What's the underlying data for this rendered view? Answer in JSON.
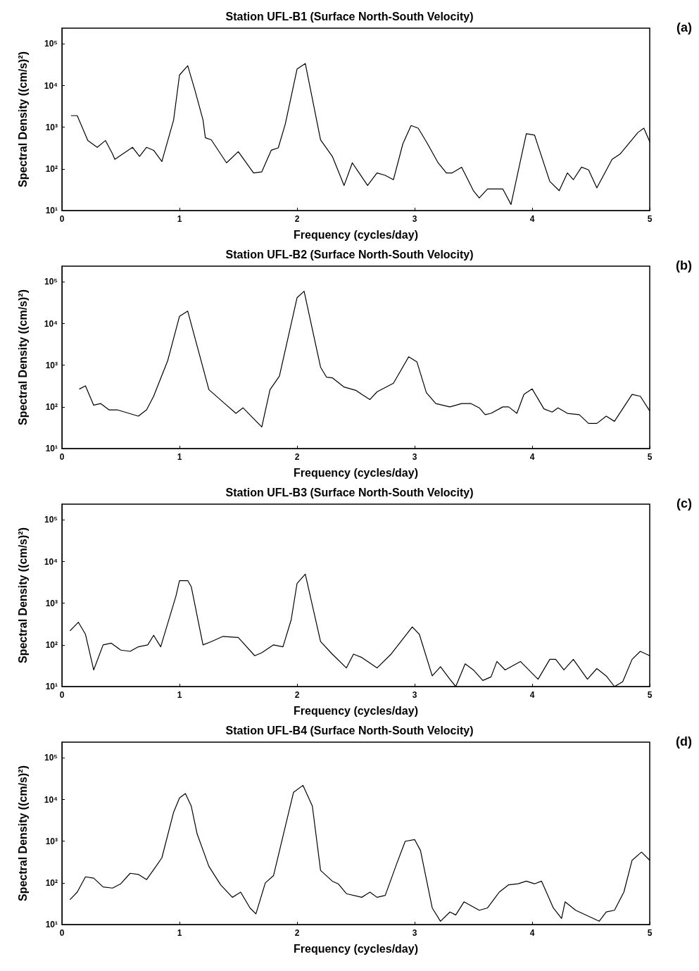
{
  "chart_data": [
    {
      "type": "line",
      "title": "Station UFL-B1 (Surface North-South Velocity)",
      "xlabel": "Frequency (cycles/day)",
      "ylabel": "Spectral Density ((cm/s)²)",
      "annotations": [
        "(a)"
      ],
      "log": "y",
      "grid": false,
      "marker": "none",
      "line_style": "solid",
      "xlim": [
        0,
        5
      ],
      "xticks": [
        0,
        1,
        2,
        3,
        4,
        5
      ],
      "ylim": [
        10,
        240000
      ],
      "yticks": [
        {
          "value": 10,
          "label": "10¹"
        },
        {
          "value": 100,
          "label": "10²"
        },
        {
          "value": 1000,
          "label": "10³"
        },
        {
          "value": 10000,
          "label": "10⁴"
        },
        {
          "value": 100000,
          "label": "10⁵"
        }
      ],
      "series": [
        {
          "color": "#000000",
          "x": [
            0.08,
            0.13,
            0.22,
            0.3,
            0.37,
            0.43,
            0.45,
            0.6,
            0.66,
            0.72,
            0.78,
            0.85,
            0.95,
            1.0,
            1.07,
            1.13,
            1.2,
            1.22,
            1.27,
            1.4,
            1.5,
            1.63,
            1.7,
            1.78,
            1.84,
            1.9,
            2.0,
            2.07,
            2.2,
            2.3,
            2.4,
            2.47,
            2.6,
            2.68,
            2.75,
            2.82,
            2.9,
            2.97,
            3.03,
            3.1,
            3.2,
            3.27,
            3.32,
            3.4,
            3.5,
            3.55,
            3.62,
            3.75,
            3.82,
            3.95,
            4.02,
            4.15,
            4.23,
            4.3,
            4.35,
            4.42,
            4.48,
            4.55,
            4.68,
            4.75,
            4.9,
            4.95,
            5.0
          ],
          "values": [
            1900,
            1900,
            480,
            330,
            480,
            230,
            170,
            330,
            200,
            330,
            280,
            150,
            1500,
            18000,
            30000,
            8000,
            1500,
            560,
            500,
            140,
            260,
            80,
            85,
            280,
            320,
            1200,
            25000,
            34000,
            500,
            200,
            40,
            140,
            40,
            80,
            70,
            55,
            400,
            1100,
            950,
            450,
            140,
            80,
            80,
            110,
            30,
            20,
            33,
            33,
            14,
            700,
            650,
            50,
            30,
            80,
            55,
            110,
            95,
            35,
            170,
            230,
            750,
            950,
            450
          ]
        }
      ]
    },
    {
      "type": "line",
      "title": "Station UFL-B2 (Surface North-South Velocity)",
      "xlabel": "Frequency (cycles/day)",
      "ylabel": "Spectral Density ((cm/s)²)",
      "annotations": [
        "(b)"
      ],
      "log": "y",
      "grid": false,
      "marker": "none",
      "line_style": "solid",
      "xlim": [
        0,
        5
      ],
      "xticks": [
        0,
        1,
        2,
        3,
        4,
        5
      ],
      "ylim": [
        10,
        240000
      ],
      "yticks": [
        {
          "value": 10,
          "label": "10¹"
        },
        {
          "value": 100,
          "label": "10²"
        },
        {
          "value": 1000,
          "label": "10³"
        },
        {
          "value": 10000,
          "label": "10⁴"
        },
        {
          "value": 100000,
          "label": "10⁵"
        }
      ],
      "series": [
        {
          "color": "#000000",
          "x": [
            0.15,
            0.2,
            0.27,
            0.33,
            0.4,
            0.47,
            0.65,
            0.72,
            0.78,
            0.9,
            1.0,
            1.07,
            1.25,
            1.4,
            1.48,
            1.54,
            1.7,
            1.77,
            1.85,
            2.0,
            2.06,
            2.2,
            2.25,
            2.3,
            2.4,
            2.5,
            2.55,
            2.62,
            2.68,
            2.82,
            2.95,
            3.02,
            3.1,
            3.18,
            3.3,
            3.4,
            3.48,
            3.55,
            3.6,
            3.65,
            3.75,
            3.8,
            3.87,
            3.93,
            4.0,
            4.1,
            4.17,
            4.22,
            4.3,
            4.4,
            4.48,
            4.55,
            4.63,
            4.7,
            4.85,
            4.92,
            5.0
          ],
          "values": [
            270,
            320,
            110,
            120,
            85,
            85,
            60,
            85,
            180,
            1300,
            15000,
            20000,
            260,
            110,
            70,
            95,
            33,
            260,
            550,
            42000,
            60000,
            900,
            520,
            500,
            300,
            250,
            200,
            150,
            230,
            370,
            1600,
            1200,
            220,
            120,
            100,
            120,
            120,
            95,
            65,
            70,
            100,
            100,
            70,
            200,
            270,
            90,
            75,
            95,
            70,
            65,
            40,
            40,
            60,
            45,
            200,
            180,
            80
          ]
        }
      ]
    },
    {
      "type": "line",
      "title": "Station UFL-B3 (Surface North-South Velocity)",
      "xlabel": "Frequency (cycles/day)",
      "ylabel": "Spectral Density ((cm/s)²)",
      "annotations": [
        "(c)"
      ],
      "log": "y",
      "grid": false,
      "marker": "none",
      "line_style": "solid",
      "xlim": [
        0,
        5
      ],
      "xticks": [
        0,
        1,
        2,
        3,
        4,
        5
      ],
      "ylim": [
        10,
        240000
      ],
      "yticks": [
        {
          "value": 10,
          "label": "10¹"
        },
        {
          "value": 100,
          "label": "10²"
        },
        {
          "value": 1000,
          "label": "10³"
        },
        {
          "value": 10000,
          "label": "10⁴"
        },
        {
          "value": 100000,
          "label": "10⁵"
        }
      ],
      "series": [
        {
          "color": "#000000",
          "x": [
            0.07,
            0.14,
            0.2,
            0.27,
            0.35,
            0.42,
            0.5,
            0.58,
            0.65,
            0.73,
            0.78,
            0.84,
            0.97,
            1.0,
            1.07,
            1.1,
            1.2,
            1.27,
            1.37,
            1.5,
            1.64,
            1.7,
            1.8,
            1.88,
            1.95,
            2.0,
            2.07,
            2.2,
            2.3,
            2.42,
            2.48,
            2.55,
            2.68,
            2.8,
            2.98,
            3.04,
            3.15,
            3.22,
            3.3,
            3.35,
            3.43,
            3.5,
            3.58,
            3.65,
            3.7,
            3.77,
            3.9,
            4.05,
            4.15,
            4.2,
            4.27,
            4.35,
            4.47,
            4.55,
            4.63,
            4.7,
            4.77,
            4.85,
            4.92,
            5.0
          ],
          "values": [
            220,
            350,
            180,
            25,
            100,
            110,
            75,
            70,
            90,
            100,
            170,
            90,
            1500,
            3500,
            3500,
            2500,
            100,
            120,
            160,
            150,
            55,
            65,
            100,
            90,
            400,
            3000,
            5000,
            120,
            60,
            28,
            60,
            50,
            28,
            60,
            270,
            180,
            18,
            30,
            15,
            10,
            35,
            25,
            14,
            17,
            40,
            25,
            40,
            15,
            45,
            45,
            25,
            45,
            15,
            27,
            18,
            10,
            13,
            45,
            70,
            55
          ]
        }
      ]
    },
    {
      "type": "line",
      "title": "Station UFL-B4 (Surface North-South Velocity)",
      "xlabel": "Frequency (cycles/day)",
      "ylabel": "Spectral Density ((cm/s)²)",
      "annotations": [
        "(d)"
      ],
      "log": "y",
      "grid": false,
      "marker": "none",
      "line_style": "solid",
      "xlim": [
        0,
        5
      ],
      "xticks": [
        0,
        1,
        2,
        3,
        4,
        5
      ],
      "ylim": [
        10,
        240000
      ],
      "yticks": [
        {
          "value": 10,
          "label": "10¹"
        },
        {
          "value": 100,
          "label": "10²"
        },
        {
          "value": 1000,
          "label": "10³"
        },
        {
          "value": 10000,
          "label": "10⁴"
        },
        {
          "value": 100000,
          "label": "10⁵"
        }
      ],
      "series": [
        {
          "color": "#000000",
          "x": [
            0.07,
            0.13,
            0.2,
            0.27,
            0.35,
            0.43,
            0.5,
            0.58,
            0.65,
            0.72,
            0.8,
            0.85,
            0.95,
            1.0,
            1.05,
            1.1,
            1.15,
            1.25,
            1.35,
            1.45,
            1.52,
            1.6,
            1.65,
            1.73,
            1.8,
            1.97,
            2.05,
            2.13,
            2.2,
            2.3,
            2.35,
            2.42,
            2.55,
            2.62,
            2.68,
            2.75,
            2.85,
            2.92,
            3.0,
            3.05,
            3.15,
            3.22,
            3.3,
            3.35,
            3.42,
            3.55,
            3.62,
            3.72,
            3.8,
            3.88,
            3.95,
            4.02,
            4.08,
            4.18,
            4.25,
            4.28,
            4.37,
            4.57,
            4.63,
            4.7,
            4.78,
            4.85,
            4.93,
            5.0
          ],
          "values": [
            40,
            60,
            140,
            130,
            80,
            75,
            95,
            170,
            160,
            120,
            250,
            400,
            5000,
            11000,
            14000,
            7000,
            1500,
            250,
            90,
            45,
            60,
            25,
            18,
            100,
            150,
            15000,
            22000,
            7000,
            200,
            110,
            95,
            55,
            45,
            60,
            45,
            50,
            300,
            1000,
            1100,
            600,
            25,
            12,
            20,
            17,
            35,
            22,
            25,
            60,
            90,
            95,
            110,
            95,
            110,
            25,
            14,
            35,
            22,
            12,
            20,
            22,
            60,
            350,
            550,
            350
          ]
        }
      ]
    }
  ]
}
